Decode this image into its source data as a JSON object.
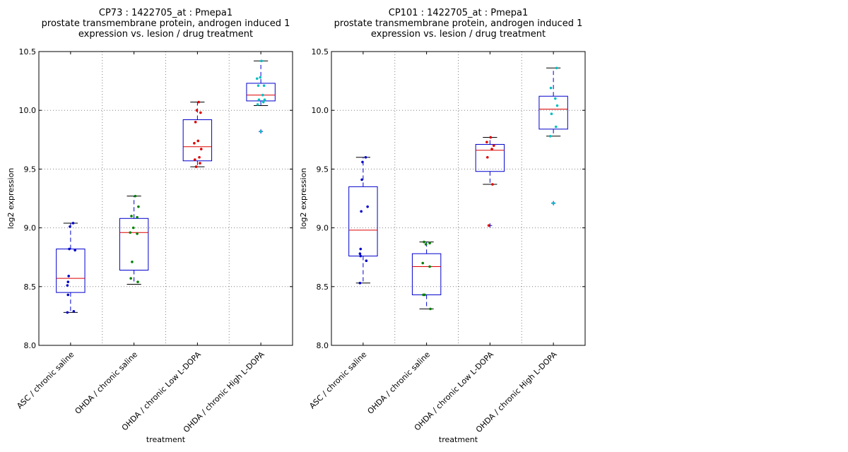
{
  "chart_data": [
    {
      "type": "box",
      "title_lines": [
        "CP73 : 1422705_at : Pmepa1",
        "prostate transmembrane protein, androgen induced 1",
        "expression vs. lesion / drug treatment"
      ],
      "xlabel": "treatment",
      "ylabel": "log2 expression",
      "ylim": [
        8.0,
        10.5
      ],
      "yticks": [
        "8.0",
        "8.5",
        "9.0",
        "9.5",
        "10.0",
        "10.5"
      ],
      "grid": true,
      "categories": [
        "ASC / chronic saline",
        "OHDA / chronic saline",
        "OHDA / chronic Low L-DOPA",
        "OHDA / chronic High L-DOPA"
      ],
      "colors": [
        "#0000cc",
        "#008000",
        "#dd0000",
        "#00bfbf"
      ],
      "boxes": [
        {
          "whislo": 8.28,
          "q1": 8.45,
          "med": 8.57,
          "q3": 8.82,
          "whishi": 9.04,
          "fliers": [],
          "points": [
            8.28,
            8.29,
            8.43,
            8.51,
            8.54,
            8.59,
            8.81,
            8.82,
            9.01,
            9.04
          ]
        },
        {
          "whislo": 8.52,
          "q1": 8.64,
          "med": 8.96,
          "q3": 9.08,
          "whishi": 9.27,
          "fliers": [],
          "points": [
            8.54,
            8.57,
            8.71,
            8.95,
            8.96,
            9.0,
            9.09,
            9.1,
            9.18,
            9.27
          ]
        },
        {
          "whislo": 9.52,
          "q1": 9.57,
          "med": 9.69,
          "q3": 9.92,
          "whishi": 10.07,
          "fliers": [],
          "points": [
            9.52,
            9.55,
            9.58,
            9.6,
            9.67,
            9.72,
            9.74,
            9.9,
            9.98,
            10.0,
            10.07
          ]
        },
        {
          "whislo": 10.04,
          "q1": 10.08,
          "med": 10.13,
          "q3": 10.23,
          "whishi": 10.42,
          "fliers": [
            9.82
          ],
          "points": [
            9.82,
            10.05,
            10.07,
            10.09,
            10.09,
            10.13,
            10.21,
            10.21,
            10.27,
            10.28,
            10.42
          ]
        }
      ]
    },
    {
      "type": "box",
      "title_lines": [
        "CP101 : 1422705_at : Pmepa1",
        "prostate transmembrane protein, androgen induced 1",
        "expression vs. lesion / drug treatment"
      ],
      "xlabel": "treatment",
      "ylabel": "log2 expression",
      "ylim": [
        8.0,
        10.5
      ],
      "yticks": [
        "8.0",
        "8.5",
        "9.0",
        "9.5",
        "10.0",
        "10.5"
      ],
      "grid": true,
      "categories": [
        "ASC / chronic saline",
        "OHDA / chronic saline",
        "OHDA / chronic Low L-DOPA",
        "OHDA / chronic High L-DOPA"
      ],
      "colors": [
        "#0000cc",
        "#008000",
        "#dd0000",
        "#00bfbf"
      ],
      "boxes": [
        {
          "whislo": 8.53,
          "q1": 8.76,
          "med": 8.98,
          "q3": 9.35,
          "whishi": 9.6,
          "fliers": [],
          "points": [
            8.53,
            8.72,
            8.76,
            8.78,
            8.82,
            9.14,
            9.18,
            9.41,
            9.56,
            9.6
          ]
        },
        {
          "whislo": 8.31,
          "q1": 8.43,
          "med": 8.67,
          "q3": 8.78,
          "whishi": 8.88,
          "fliers": [],
          "points": [
            8.31,
            8.43,
            8.43,
            8.67,
            8.7,
            8.86,
            8.87,
            8.88
          ]
        },
        {
          "whislo": 9.37,
          "q1": 9.48,
          "med": 9.66,
          "q3": 9.71,
          "whishi": 9.77,
          "fliers": [
            9.02
          ],
          "points": [
            9.02,
            9.37,
            9.6,
            9.67,
            9.7,
            9.73,
            9.77
          ]
        },
        {
          "whislo": 9.78,
          "q1": 9.84,
          "med": 10.01,
          "q3": 10.12,
          "whishi": 10.36,
          "fliers": [
            9.21
          ],
          "points": [
            9.21,
            9.78,
            9.86,
            9.97,
            10.04,
            10.1,
            10.19,
            10.36
          ]
        }
      ]
    }
  ]
}
